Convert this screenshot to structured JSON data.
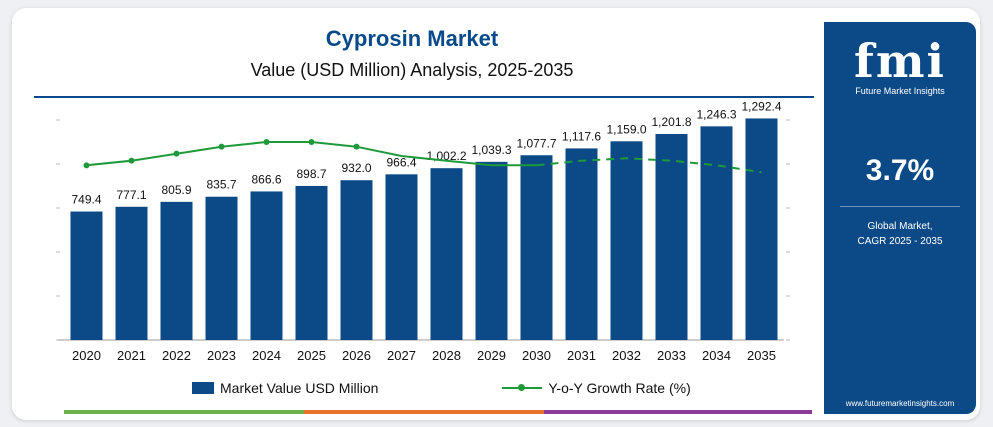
{
  "header": {
    "title": "Cyprosin Market",
    "subtitle": "Value (USD Million) Analysis, 2025-2035"
  },
  "colors": {
    "bar": "#0b4a86",
    "line": "#1e9a3a",
    "accent_green": "#6bb24a",
    "accent_orange": "#e9722c",
    "accent_purple": "#8a3a98"
  },
  "chart_data": {
    "type": "bar",
    "categories": [
      "2020",
      "2021",
      "2022",
      "2023",
      "2024",
      "2025",
      "2026",
      "2027",
      "2028",
      "2029",
      "2030",
      "2031",
      "2032",
      "2033",
      "2034",
      "2035"
    ],
    "series": [
      {
        "name": "Market Value USD Million",
        "type": "bar",
        "values": [
          749.4,
          777.1,
          805.9,
          835.7,
          866.6,
          898.7,
          932.0,
          966.4,
          1002.2,
          1039.3,
          1077.7,
          1117.6,
          1159.0,
          1201.8,
          1246.3,
          1292.4
        ],
        "labels": [
          "749.4",
          "777.1",
          "805.9",
          "835.7",
          "866.6",
          "898.7",
          "932.0",
          "966.4",
          "1,002.2",
          "1,039.3",
          "1,077.7",
          "1,117.6",
          "1,159.0",
          "1,201.8",
          "1,246.3",
          "1,292.4"
        ]
      },
      {
        "name": "Y-o-Y Growth Rate (%)",
        "type": "line",
        "values": [
          3.4,
          3.6,
          3.9,
          4.2,
          4.4,
          4.4,
          4.2,
          3.8,
          3.6,
          3.4,
          3.4,
          3.6,
          3.7,
          3.6,
          3.4,
          3.1
        ]
      }
    ],
    "ylim": [
      0,
      1400
    ],
    "grid": false,
    "legend": "bottom"
  },
  "legend": {
    "bar_label": "Market Value USD Million",
    "line_label": "Y-o-Y Growth Rate (%)"
  },
  "side_panel": {
    "logo": "fmi",
    "logo_sub": "Future Market Insights",
    "cagr_value": "3.7%",
    "cagr_label_1": "Global Market,",
    "cagr_label_2": "CAGR 2025 - 2035",
    "website": "www.futuremarketinsights.com"
  }
}
